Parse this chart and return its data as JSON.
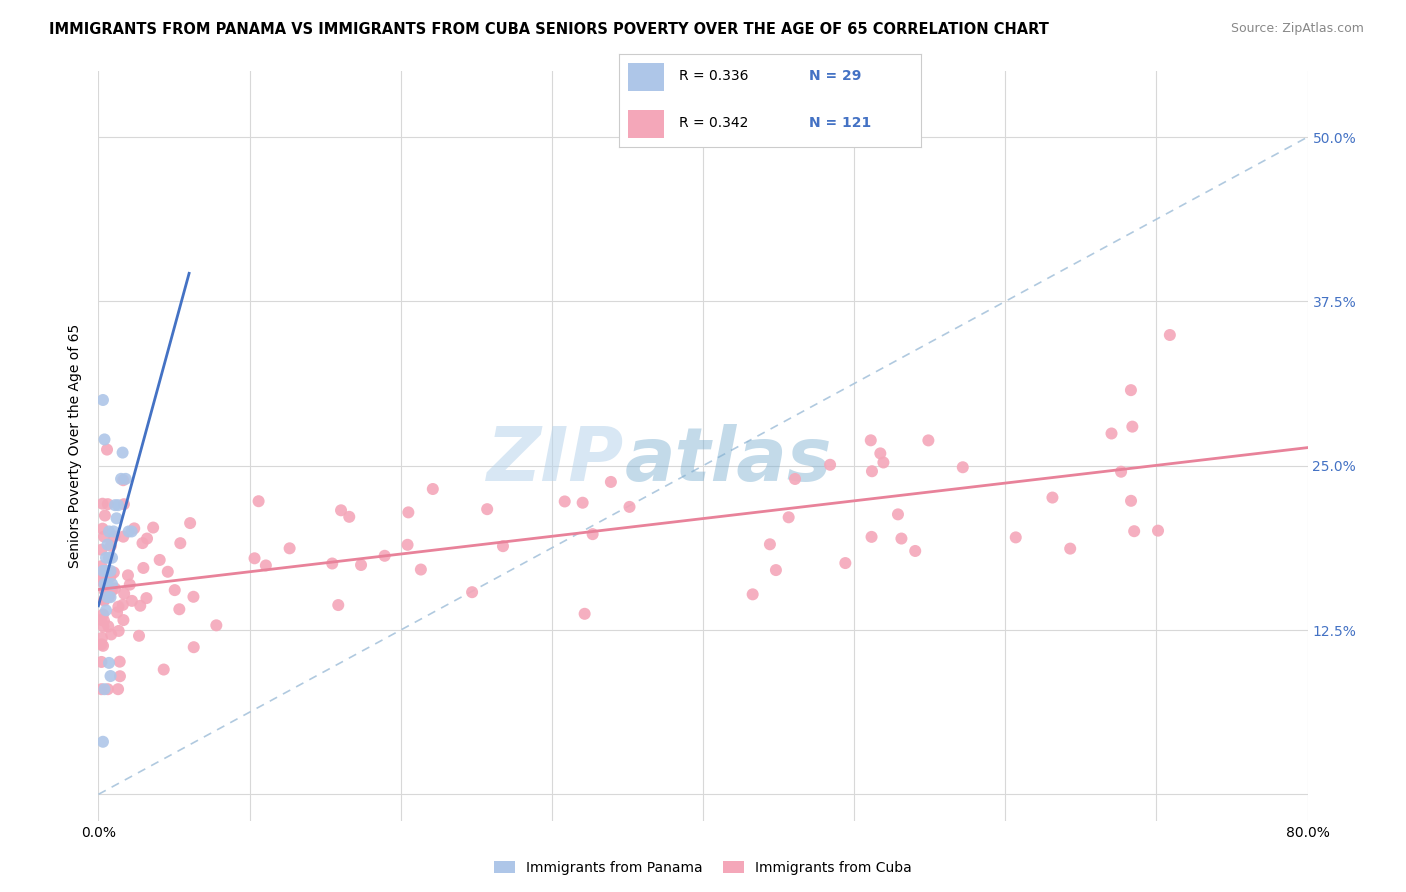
{
  "title": "IMMIGRANTS FROM PANAMA VS IMMIGRANTS FROM CUBA SENIORS POVERTY OVER THE AGE OF 65 CORRELATION CHART",
  "source": "Source: ZipAtlas.com",
  "ylabel": "Seniors Poverty Over the Age of 65",
  "xlim": [
    0.0,
    0.8
  ],
  "ylim": [
    -0.02,
    0.55
  ],
  "yticks_right": [
    0.0,
    0.125,
    0.25,
    0.375,
    0.5
  ],
  "ytick_right_labels": [
    "",
    "12.5%",
    "25.0%",
    "37.5%",
    "50.0%"
  ],
  "panama_color": "#aec6e8",
  "cuba_color": "#f4a7b9",
  "panama_line_color": "#4472c4",
  "cuba_line_color": "#e8829a",
  "diagonal_color": "#a8c4dc",
  "R_panama": 0.336,
  "N_panama": 29,
  "R_cuba": 0.342,
  "N_cuba": 121,
  "watermark_zip": "ZIP",
  "watermark_atlas": "atlas",
  "background_color": "#ffffff",
  "grid_color": "#d8d8d8",
  "legend_border_color": "#cccccc",
  "right_axis_color": "#4472c4",
  "bottom_label_panama": "Immigrants from Panama",
  "bottom_label_cuba": "Immigrants from Cuba"
}
